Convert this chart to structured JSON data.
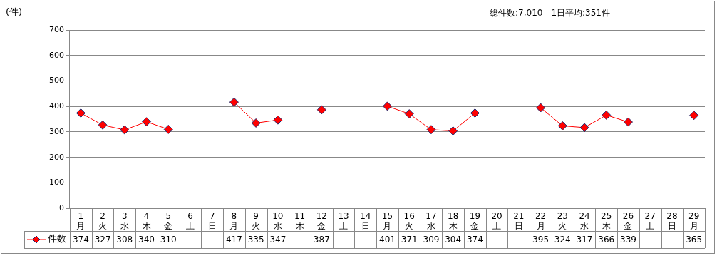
{
  "chart_data": {
    "type": "line",
    "ylabel": "(件)",
    "annotations": [
      "総件数:7,010　1日平均:351件"
    ],
    "categories": [
      "1\n月",
      "2\n火",
      "3\n水",
      "4\n木",
      "5\n金",
      "6\n土",
      "7\n日",
      "8\n月",
      "9\n火",
      "10\n水",
      "11\n木",
      "12\n金",
      "13\n土",
      "14\n日",
      "15\n月",
      "16\n火",
      "17\n水",
      "18\n木",
      "19\n金",
      "20\n土",
      "21\n日",
      "22\n月",
      "23\n火",
      "24\n水",
      "25\n木",
      "26\n金",
      "27\n土",
      "28\n日",
      "29\n月"
    ],
    "series": [
      {
        "name": "件数",
        "color": "#ff0000",
        "values": [
          374,
          327,
          308,
          340,
          310,
          null,
          null,
          417,
          335,
          347,
          null,
          387,
          null,
          null,
          401,
          371,
          309,
          304,
          374,
          null,
          null,
          395,
          324,
          317,
          366,
          339,
          null,
          null,
          365
        ]
      }
    ],
    "ylim": [
      0,
      700
    ],
    "yticks": [
      0,
      100,
      200,
      300,
      400,
      500,
      600,
      700
    ],
    "grid": "y",
    "legend": "bottom",
    "marker": "diamond",
    "line_style": "solid",
    "data_labels": true
  }
}
